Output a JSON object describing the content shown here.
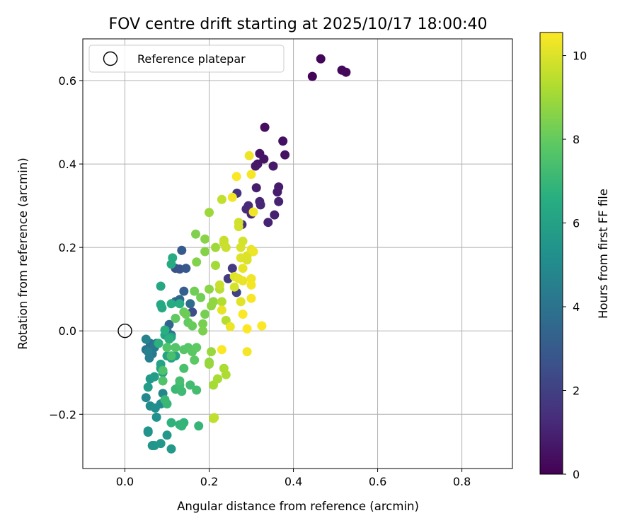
{
  "chart_data": {
    "type": "scatter",
    "title": "FOV centre drift starting at 2025/10/17 18:00:40",
    "xlabel": "Angular distance from reference (arcmin)",
    "ylabel": "Rotation from reference (arcmin)",
    "xlim": [
      -0.1,
      0.92
    ],
    "ylim": [
      -0.33,
      0.7
    ],
    "xticks": [
      0.0,
      0.2,
      0.4,
      0.6,
      0.8
    ],
    "xtick_labels": [
      "0.0",
      "0.2",
      "0.4",
      "0.6",
      "0.8"
    ],
    "yticks": [
      -0.2,
      0.0,
      0.2,
      0.4,
      0.6
    ],
    "ytick_labels": [
      "−0.2",
      "0.0",
      "0.2",
      "0.4",
      "0.6"
    ],
    "grid": true,
    "legend": {
      "placement": "top-left",
      "entries": [
        {
          "label": "Reference platepar",
          "marker": "open-circle"
        }
      ]
    },
    "reference_point": {
      "x": 0.0,
      "y": 0.0
    },
    "colorbar": {
      "label": "Hours from first FF file",
      "range": [
        0,
        10.55
      ],
      "ticks": [
        0,
        2,
        4,
        6,
        8,
        10
      ],
      "tick_labels": [
        "0",
        "2",
        "4",
        "6",
        "8",
        "10"
      ],
      "colormap": "viridis"
    },
    "series": [
      {
        "name": "FOV centre drift",
        "points": [
          [
            0.445,
            0.61,
            0.1
          ],
          [
            0.465,
            0.652,
            0.15
          ],
          [
            0.515,
            0.625,
            0.2
          ],
          [
            0.525,
            0.62,
            0.25
          ],
          [
            0.332,
            0.488,
            0.4
          ],
          [
            0.375,
            0.455,
            0.45
          ],
          [
            0.38,
            0.422,
            0.5
          ],
          [
            0.32,
            0.425,
            0.55
          ],
          [
            0.33,
            0.412,
            0.6
          ],
          [
            0.315,
            0.4,
            0.65
          ],
          [
            0.31,
            0.395,
            0.7
          ],
          [
            0.352,
            0.395,
            0.75
          ],
          [
            0.365,
            0.345,
            0.8
          ],
          [
            0.362,
            0.333,
            0.85
          ],
          [
            0.312,
            0.343,
            0.9
          ],
          [
            0.355,
            0.278,
            0.95
          ],
          [
            0.365,
            0.31,
            1.0
          ],
          [
            0.34,
            0.26,
            1.05
          ],
          [
            0.32,
            0.31,
            1.1
          ],
          [
            0.322,
            0.302,
            1.15
          ],
          [
            0.3,
            0.28,
            1.2
          ],
          [
            0.288,
            0.292,
            1.25
          ],
          [
            0.293,
            0.3,
            1.3
          ],
          [
            0.278,
            0.255,
            1.35
          ],
          [
            0.266,
            0.33,
            1.6
          ],
          [
            0.255,
            0.15,
            1.8
          ],
          [
            0.245,
            0.125,
            1.9
          ],
          [
            0.265,
            0.092,
            2.1
          ],
          [
            0.16,
            0.045,
            2.5
          ],
          [
            0.12,
            0.15,
            2.6
          ],
          [
            0.13,
            0.148,
            2.7
          ],
          [
            0.145,
            0.15,
            2.9
          ],
          [
            0.135,
            0.193,
            3.0
          ],
          [
            0.14,
            0.095,
            3.2
          ],
          [
            0.105,
            0.015,
            3.4
          ],
          [
            0.13,
            0.075,
            3.5
          ],
          [
            0.12,
            0.07,
            3.6
          ],
          [
            0.155,
            0.065,
            3.7
          ],
          [
            0.1,
            0.0,
            3.8
          ],
          [
            0.11,
            -0.01,
            3.9
          ],
          [
            0.06,
            -0.03,
            4.0
          ],
          [
            0.05,
            -0.045,
            4.1
          ],
          [
            0.065,
            -0.055,
            4.2
          ],
          [
            0.07,
            -0.04,
            4.3
          ],
          [
            0.075,
            -0.03,
            4.4
          ],
          [
            0.058,
            -0.065,
            4.5
          ],
          [
            0.055,
            -0.05,
            4.6
          ],
          [
            0.05,
            -0.02,
            4.7
          ],
          [
            0.09,
            -0.15,
            4.8
          ],
          [
            0.05,
            -0.16,
            4.9
          ],
          [
            0.085,
            -0.175,
            5.0
          ],
          [
            0.06,
            -0.18,
            5.1
          ],
          [
            0.072,
            -0.185,
            5.2
          ],
          [
            0.075,
            -0.207,
            5.3
          ],
          [
            0.055,
            -0.24,
            5.4
          ],
          [
            0.055,
            -0.243,
            5.45
          ],
          [
            0.065,
            -0.275,
            5.5
          ],
          [
            0.07,
            -0.275,
            5.55
          ],
          [
            0.085,
            -0.27,
            5.6
          ],
          [
            0.1,
            -0.25,
            5.65
          ],
          [
            0.11,
            -0.283,
            5.7
          ],
          [
            0.06,
            -0.115,
            5.75
          ],
          [
            0.07,
            -0.11,
            5.8
          ],
          [
            0.055,
            -0.135,
            5.85
          ],
          [
            0.085,
            -0.09,
            5.9
          ],
          [
            0.09,
            -0.1,
            5.95
          ],
          [
            0.11,
            -0.065,
            6.0
          ],
          [
            0.12,
            -0.06,
            6.05
          ],
          [
            0.1,
            -0.06,
            6.1
          ],
          [
            0.085,
            -0.08,
            6.15
          ],
          [
            0.11,
            -0.015,
            6.2
          ],
          [
            0.095,
            -0.01,
            6.25
          ],
          [
            0.085,
            0.107,
            6.3
          ],
          [
            0.085,
            0.063,
            6.35
          ],
          [
            0.088,
            0.055,
            6.4
          ],
          [
            0.11,
            0.16,
            6.45
          ],
          [
            0.113,
            0.175,
            6.5
          ],
          [
            0.11,
            0.065,
            6.55
          ],
          [
            0.13,
            0.065,
            6.6
          ],
          [
            0.095,
            0.002,
            6.65
          ],
          [
            0.105,
            -0.02,
            6.7
          ],
          [
            0.08,
            -0.03,
            6.75
          ],
          [
            0.11,
            -0.22,
            6.8
          ],
          [
            0.13,
            -0.225,
            6.85
          ],
          [
            0.14,
            -0.22,
            6.9
          ],
          [
            0.135,
            -0.228,
            6.95
          ],
          [
            0.175,
            -0.228,
            7.0
          ],
          [
            0.1,
            -0.175,
            7.05
          ],
          [
            0.095,
            -0.165,
            7.1
          ],
          [
            0.12,
            -0.14,
            7.15
          ],
          [
            0.135,
            -0.145,
            7.2
          ],
          [
            0.13,
            -0.13,
            7.25
          ],
          [
            0.155,
            -0.13,
            7.3
          ],
          [
            0.17,
            -0.142,
            7.35
          ],
          [
            0.13,
            -0.12,
            7.4
          ],
          [
            0.11,
            -0.06,
            7.45
          ],
          [
            0.14,
            -0.09,
            7.5
          ],
          [
            0.09,
            -0.095,
            7.55
          ],
          [
            0.09,
            -0.12,
            7.6
          ],
          [
            0.1,
            -0.04,
            7.65
          ],
          [
            0.12,
            -0.04,
            7.7
          ],
          [
            0.14,
            -0.045,
            7.75
          ],
          [
            0.15,
            -0.04,
            7.8
          ],
          [
            0.16,
            -0.05,
            7.85
          ],
          [
            0.165,
            -0.07,
            7.9
          ],
          [
            0.17,
            -0.04,
            7.95
          ],
          [
            0.12,
            0.03,
            8.0
          ],
          [
            0.15,
            0.02,
            8.05
          ],
          [
            0.16,
            0.012,
            8.1
          ],
          [
            0.14,
            0.045,
            8.15
          ],
          [
            0.145,
            0.04,
            8.2
          ],
          [
            0.165,
            0.095,
            8.25
          ],
          [
            0.18,
            0.08,
            8.3
          ],
          [
            0.19,
            0.04,
            8.35
          ],
          [
            0.185,
            0.017,
            8.4
          ],
          [
            0.185,
            0.0,
            8.45
          ],
          [
            0.168,
            0.232,
            8.5
          ],
          [
            0.17,
            0.165,
            8.55
          ],
          [
            0.19,
            0.19,
            8.6
          ],
          [
            0.19,
            0.22,
            8.65
          ],
          [
            0.2,
            0.1,
            8.7
          ],
          [
            0.205,
            0.06,
            8.75
          ],
          [
            0.21,
            0.07,
            8.8
          ],
          [
            0.2,
            -0.075,
            8.85
          ],
          [
            0.2,
            -0.08,
            8.9
          ],
          [
            0.205,
            -0.05,
            8.95
          ],
          [
            0.2,
            0.284,
            9.0
          ],
          [
            0.215,
            0.2,
            9.05
          ],
          [
            0.215,
            0.157,
            9.1
          ],
          [
            0.21,
            -0.13,
            9.15
          ],
          [
            0.22,
            -0.115,
            9.2
          ],
          [
            0.235,
            -0.09,
            9.25
          ],
          [
            0.24,
            -0.105,
            9.3
          ],
          [
            0.23,
            0.07,
            9.35
          ],
          [
            0.24,
            0.025,
            9.4
          ],
          [
            0.225,
            0.1,
            9.45
          ],
          [
            0.21,
            -0.21,
            9.5
          ],
          [
            0.212,
            -0.208,
            9.55
          ],
          [
            0.23,
            0.315,
            9.6
          ],
          [
            0.235,
            0.21,
            9.65
          ],
          [
            0.235,
            0.217,
            9.7
          ],
          [
            0.24,
            0.2,
            9.75
          ],
          [
            0.27,
            0.26,
            9.8
          ],
          [
            0.27,
            0.25,
            9.85
          ],
          [
            0.28,
            0.215,
            9.9
          ],
          [
            0.275,
            0.2,
            9.95
          ],
          [
            0.29,
            0.18,
            10.0
          ],
          [
            0.275,
            0.175,
            10.05
          ],
          [
            0.26,
            0.13,
            10.1
          ],
          [
            0.27,
            0.125,
            10.15
          ],
          [
            0.28,
            0.15,
            10.2
          ],
          [
            0.3,
            0.195,
            10.25
          ],
          [
            0.305,
            0.19,
            10.3
          ],
          [
            0.3,
            0.125,
            10.35
          ],
          [
            0.3,
            0.11,
            10.4
          ],
          [
            0.3,
            0.078,
            10.45
          ],
          [
            0.28,
            0.04,
            10.5
          ],
          [
            0.29,
            0.005,
            10.55
          ],
          [
            0.255,
            0.32,
            10.4
          ],
          [
            0.265,
            0.37,
            10.5
          ],
          [
            0.295,
            0.42,
            10.3
          ],
          [
            0.3,
            0.375,
            10.45
          ],
          [
            0.305,
            0.285,
            10.35
          ],
          [
            0.23,
            0.05,
            10.2
          ],
          [
            0.25,
            0.01,
            10.3
          ],
          [
            0.23,
            -0.045,
            10.5
          ],
          [
            0.29,
            -0.05,
            10.4
          ],
          [
            0.325,
            0.012,
            10.5
          ],
          [
            0.275,
            0.07,
            10.1
          ],
          [
            0.29,
            0.17,
            10.0
          ],
          [
            0.26,
            0.105,
            9.9
          ],
          [
            0.225,
            0.11,
            9.7
          ],
          [
            0.28,
            0.12,
            10.25
          ]
        ]
      }
    ]
  }
}
